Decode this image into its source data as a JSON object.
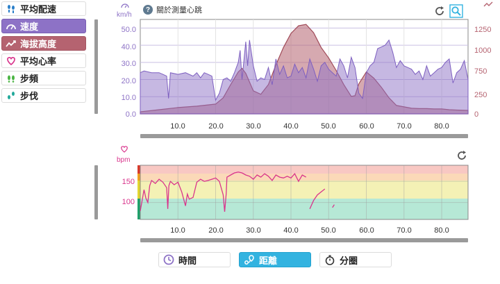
{
  "menu": {
    "items": [
      {
        "label": "平均配速",
        "icon": "footsteps-icon",
        "active": false
      },
      {
        "label": "速度",
        "icon": "speedometer-icon",
        "active": true
      },
      {
        "label": "海拔高度",
        "icon": "trend-line-icon",
        "active": true
      },
      {
        "label": "平均心率",
        "icon": "heart-icon",
        "active": false
      },
      {
        "label": "步頻",
        "icon": "feet-icon",
        "active": false
      },
      {
        "label": "步伐",
        "icon": "stride-icon",
        "active": false
      }
    ]
  },
  "help": {
    "label": "關於測量心跳"
  },
  "top_chart": {
    "left_unit": "km/h",
    "left_ticks": [
      "50.0",
      "40.0",
      "30.0",
      "20.0",
      "10.0",
      "0.0"
    ],
    "right_ticks": [
      "1250",
      "1000",
      "750",
      "500",
      "250",
      "0"
    ],
    "x_ticks": [
      "10.0",
      "20.0",
      "30.0",
      "40.0",
      "50.0",
      "60.0",
      "70.0",
      "80.0"
    ]
  },
  "bottom_chart": {
    "unit": "bpm",
    "y_ticks": [
      "150",
      "100"
    ],
    "x_ticks": [
      "10.0",
      "20.0",
      "30.0",
      "40.0",
      "50.0",
      "60.0",
      "70.0",
      "80.0"
    ]
  },
  "modes": [
    {
      "label": "時間",
      "icon": "clock-icon",
      "active": false
    },
    {
      "label": "距離",
      "icon": "route-icon",
      "active": true
    },
    {
      "label": "分圈",
      "icon": "stopwatch-icon",
      "active": false
    }
  ],
  "colors": {
    "speed": "#8d72c6",
    "elevation": "#b56370",
    "heart": "#d9348c",
    "active_mode": "#33b3e0"
  },
  "chart_data": [
    {
      "type": "area",
      "xlabel": "",
      "ylabel": "km/h",
      "xlim": [
        0,
        87
      ],
      "ylim": [
        0,
        55
      ],
      "y2lim": [
        0,
        1350
      ],
      "x_ticks": [
        10,
        20,
        30,
        40,
        50,
        60,
        70,
        80
      ],
      "grid": true,
      "series": [
        {
          "axis": "left",
          "x": [
            0,
            1,
            3,
            5,
            6,
            7,
            7.5,
            8,
            10,
            12,
            14,
            15,
            16,
            17,
            18,
            19,
            20,
            21,
            22,
            23,
            24,
            25,
            26,
            26.5,
            27,
            28,
            28.5,
            29,
            30,
            31,
            32,
            33,
            34,
            35,
            36,
            37,
            38,
            39,
            40,
            41,
            42,
            43,
            44,
            45,
            46,
            47,
            48,
            49,
            50,
            51,
            52,
            53,
            54,
            55,
            56,
            57,
            58,
            59,
            60,
            61,
            62,
            63,
            64,
            65,
            66,
            67,
            68,
            69,
            70,
            71,
            72,
            73,
            74,
            75,
            76,
            77,
            78,
            79,
            80,
            81,
            82,
            83,
            84,
            85,
            86,
            87
          ],
          "values": [
            24,
            25,
            24,
            24,
            23,
            22,
            9,
            24,
            23,
            24,
            22,
            24,
            21,
            24,
            23,
            22,
            8,
            12,
            20,
            21,
            19,
            24,
            30,
            37,
            20,
            42,
            28,
            43,
            28,
            19,
            21,
            20,
            27,
            17,
            32,
            23,
            28,
            21,
            22,
            29,
            24,
            27,
            21,
            32,
            26,
            19,
            28,
            30,
            26,
            24,
            22,
            32,
            28,
            21,
            33,
            27,
            12,
            9,
            24,
            28,
            30,
            38,
            39,
            40,
            43,
            36,
            27,
            31,
            28,
            27,
            26,
            23,
            25,
            20,
            28,
            22,
            24,
            26,
            27,
            30,
            32,
            18,
            24,
            26,
            31,
            20
          ],
          "note": ""
        },
        {
          "axis": "right",
          "x": [
            0,
            5,
            10,
            15,
            20,
            22,
            24,
            26,
            27,
            28,
            30,
            32,
            34,
            36,
            38,
            40,
            42,
            44,
            46,
            48,
            50,
            52,
            54,
            56,
            57,
            58,
            60,
            62,
            64,
            66,
            68,
            70,
            72,
            74,
            76,
            78,
            80,
            82,
            84,
            87
          ],
          "values": [
            30,
            60,
            90,
            110,
            140,
            230,
            420,
            600,
            650,
            580,
            330,
            280,
            420,
            700,
            950,
            1150,
            1260,
            1280,
            1160,
            950,
            800,
            620,
            420,
            250,
            260,
            430,
            600,
            510,
            380,
            230,
            120,
            100,
            80,
            75,
            75,
            70,
            70,
            60,
            55,
            50
          ]
        }
      ]
    },
    {
      "type": "line",
      "xlabel": "",
      "ylabel": "bpm",
      "xlim": [
        0,
        87
      ],
      "ylim": [
        60,
        188
      ],
      "x_ticks": [
        10,
        20,
        30,
        40,
        50,
        60,
        70,
        80
      ],
      "y_ticks": [
        100,
        150
      ],
      "series": [
        {
          "x": [
            0,
            0.5,
            1,
            1.5,
            2,
            2.5,
            3,
            4,
            5,
            6,
            7,
            7.3,
            7.6,
            8,
            9,
            10,
            11,
            12,
            12.5,
            13,
            14,
            15,
            16,
            17,
            18,
            19,
            20,
            21,
            22,
            22.4,
            22.8,
            23,
            24,
            25,
            26,
            27,
            28,
            29,
            30,
            31,
            32,
            33,
            34,
            35,
            36,
            37,
            38,
            39,
            40,
            41,
            42,
            43,
            44
          ],
          "values": [
            80,
            105,
            130,
            110,
            100,
            140,
            152,
            145,
            155,
            148,
            135,
            85,
            140,
            150,
            142,
            148,
            125,
            92,
            120,
            108,
            112,
            148,
            155,
            150,
            152,
            155,
            158,
            150,
            118,
            78,
            120,
            160,
            165,
            170,
            172,
            170,
            165,
            162,
            155,
            165,
            160,
            168,
            162,
            152,
            165,
            160,
            158,
            162,
            158,
            168,
            150,
            165,
            160
          ]
        },
        {
          "x": [
            45,
            46,
            47,
            48,
            49
          ],
          "values": [
            85,
            105,
            118,
            125,
            132
          ]
        },
        {
          "x": [
            51,
            51.5
          ],
          "values": [
            88,
            95
          ]
        }
      ]
    }
  ]
}
